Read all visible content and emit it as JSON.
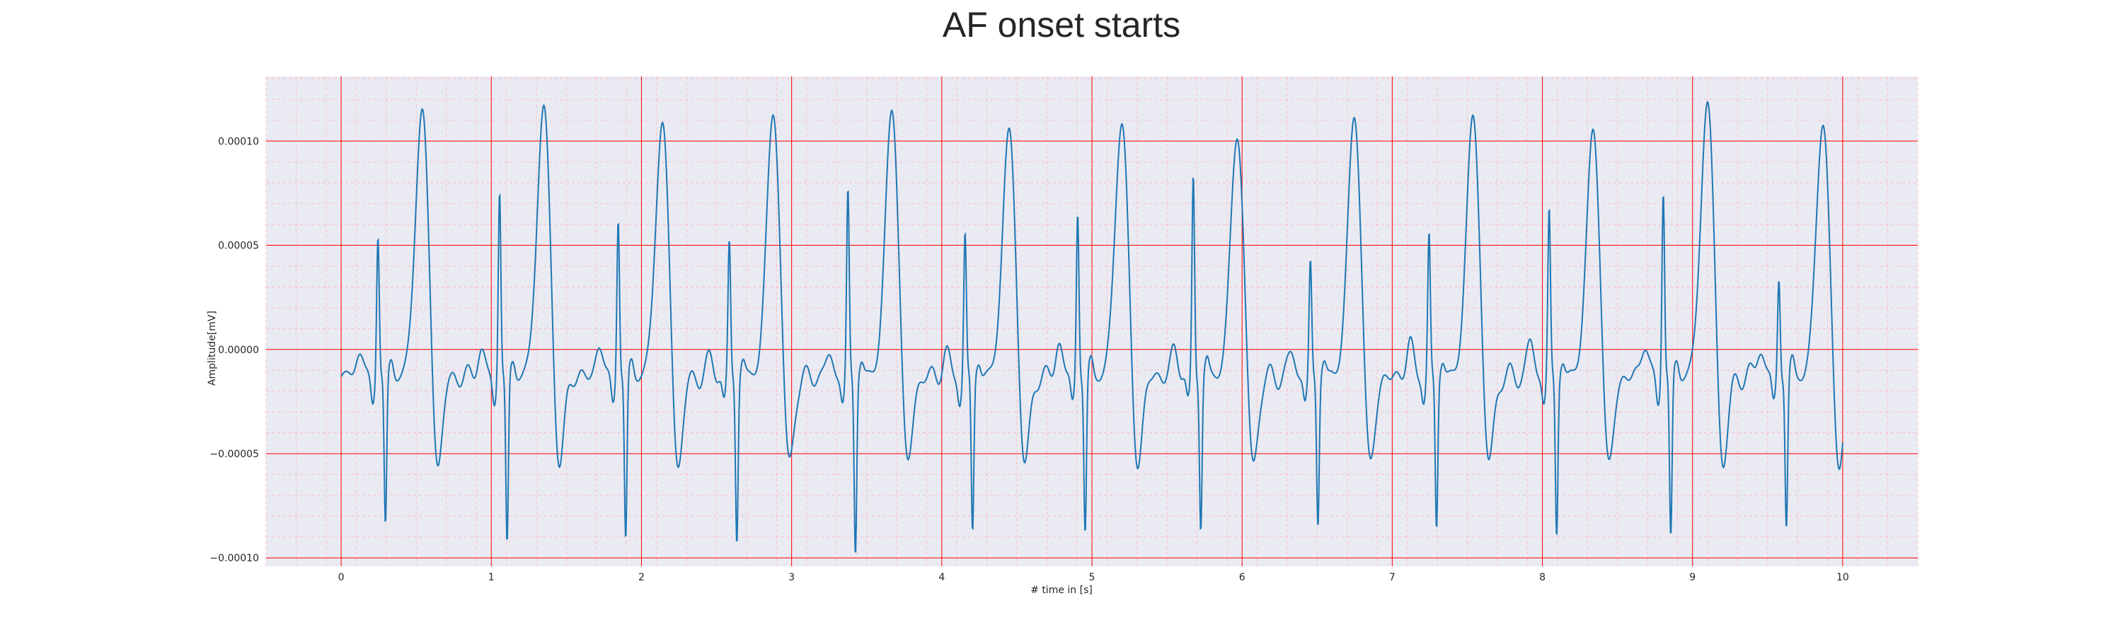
{
  "chart_data": {
    "type": "line",
    "title": "AF onset starts",
    "xlabel": "# time in [s]",
    "ylabel": "Amplitude[mV]",
    "xlim": [
      -0.5,
      10.5
    ],
    "ylim": [
      -0.000104,
      0.000131
    ],
    "x_ticks": [
      0,
      1,
      2,
      3,
      4,
      5,
      6,
      7,
      8,
      9,
      10
    ],
    "x_tick_labels": [
      "0",
      "1",
      "2",
      "3",
      "4",
      "5",
      "6",
      "7",
      "8",
      "9",
      "10"
    ],
    "y_ticks": [
      -0.0001,
      -5e-05,
      0.0,
      5e-05,
      0.0001
    ],
    "y_tick_labels": [
      "−0.00010",
      "−0.00005",
      "0.00000",
      "0.00005",
      "0.00010"
    ],
    "grid": "major and minor",
    "colors": {
      "line": "#1f77b4",
      "plot_background": "#eaeaf2",
      "major_grid": "#ff0000",
      "minor_grid": "#ffb3c1",
      "text": "#262626"
    },
    "beats": [
      {
        "x": 0.12,
        "p": 1.2e-05,
        "r": 5.5e-05,
        "s": -8.5e-05,
        "t": 0.000117
      },
      {
        "x": 0.93,
        "p": 1.3e-05,
        "r": 7.6e-05,
        "s": -9.4e-05,
        "t": 0.000118
      },
      {
        "x": 1.72,
        "p": 1.5e-05,
        "r": 6.3e-05,
        "s": -9.2e-05,
        "t": 0.000111
      },
      {
        "x": 2.46,
        "p": 8e-06,
        "r": 5e-05,
        "s": -9e-05,
        "t": 0.000115
      },
      {
        "x": 3.25,
        "p": 1e-05,
        "r": 7.4e-05,
        "s": -9.6e-05,
        "t": 0.000116
      },
      {
        "x": 4.03,
        "p": 1.1e-05,
        "r": 5.4e-05,
        "s": -8.7e-05,
        "t": 0.000106
      },
      {
        "x": 4.78,
        "p": 1.6e-05,
        "r": 6.6e-05,
        "s": -8.8e-05,
        "t": 0.000112
      },
      {
        "x": 5.55,
        "p": 1.3e-05,
        "r": 8.2e-05,
        "s": -8.4e-05,
        "t": 0.000105
      },
      {
        "x": 6.33,
        "p": 1.1e-05,
        "r": 4e-05,
        "s": -8.2e-05,
        "t": 0.000113
      },
      {
        "x": 7.12,
        "p": 1.6e-05,
        "r": 5.3e-05,
        "s": -8.4e-05,
        "t": 0.000113
      },
      {
        "x": 7.92,
        "p": 1.6e-05,
        "r": 6.5e-05,
        "s": -8.8e-05,
        "t": 0.000106
      },
      {
        "x": 8.68,
        "p": 1.6e-05,
        "r": 7.6e-05,
        "s": -9.1e-05,
        "t": 0.00012
      },
      {
        "x": 9.45,
        "p": 1.4e-05,
        "r": 3.4e-05,
        "s": -8.5e-05,
        "t": 0.000112
      }
    ]
  }
}
